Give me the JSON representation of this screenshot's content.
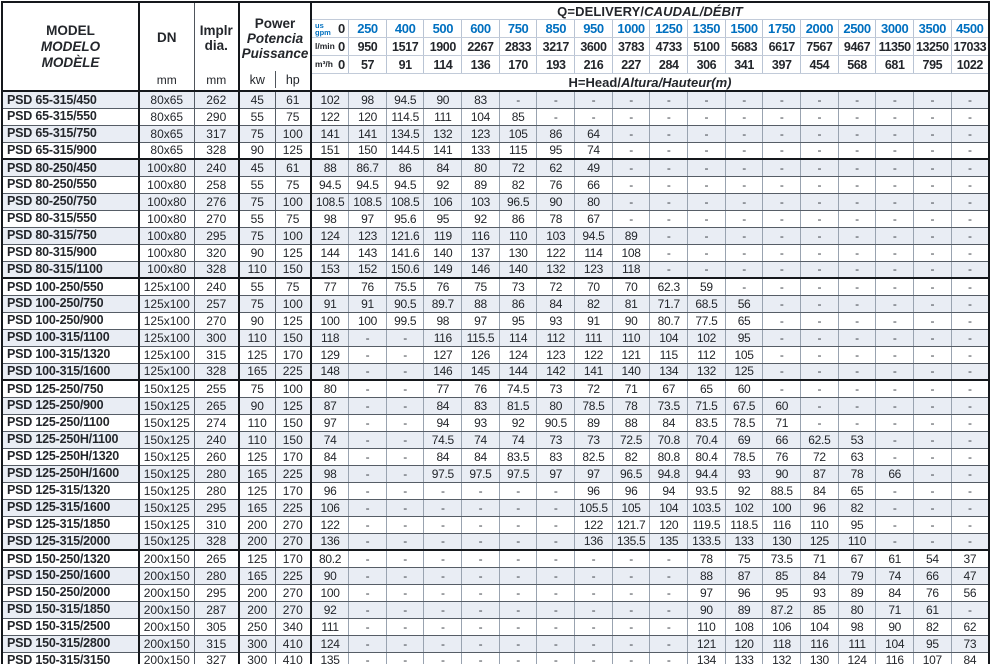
{
  "header": {
    "model_l1": "MODEL",
    "model_l2": "MODELO",
    "model_l3": "MODÈLE",
    "dn": "DN",
    "dn_unit": "mm",
    "implr_l1": "Implr",
    "implr_l2": "dia.",
    "implr_unit": "mm",
    "power_l1": "Power",
    "power_l2": "Potencia",
    "power_l3": "Puissance",
    "kw": "kw",
    "hp": "hp",
    "q_title_plain": "Q=DELIVERY/",
    "q_title_italic": "CAUDAL/DÉBIT",
    "h_title_plain": "H=Head/",
    "h_title_italic": "Altura/Hauteur",
    "h_title_unit": "(m)",
    "gpm_label_1": "us",
    "gpm_label_2": "gpm",
    "lmin_label": "l/min",
    "m3h_label": "m³/h",
    "gpm_zero": "0",
    "lmin_zero": "0",
    "m3h_zero": "0",
    "gpm": [
      "250",
      "400",
      "500",
      "600",
      "750",
      "850",
      "950",
      "1000",
      "1250",
      "1350",
      "1500",
      "1750",
      "2000",
      "2500",
      "3000",
      "3500",
      "4500"
    ],
    "lmin": [
      "950",
      "1517",
      "1900",
      "2267",
      "2833",
      "3217",
      "3600",
      "3783",
      "4733",
      "5100",
      "5683",
      "6617",
      "7567",
      "9467",
      "11350",
      "13250",
      "17033"
    ],
    "m3h": [
      "57",
      "91",
      "114",
      "136",
      "170",
      "193",
      "216",
      "227",
      "284",
      "306",
      "341",
      "397",
      "454",
      "568",
      "681",
      "795",
      "1022"
    ]
  },
  "colors": {
    "accent_blue": "#0070c0",
    "row_stripe": "#e9edf4",
    "border_dark": "#15181c"
  },
  "rows": [
    {
      "model": "PSD 65-315/450",
      "dn": "80x65",
      "dia": "262",
      "kw": "45",
      "hp": "61",
      "h": [
        "102",
        "98",
        "94.5",
        "90",
        "83",
        "-",
        "-",
        "-",
        "-",
        "-",
        "-",
        "-",
        "-",
        "-",
        "-",
        "-",
        "-",
        "-"
      ]
    },
    {
      "model": "PSD 65-315/550",
      "dn": "80x65",
      "dia": "290",
      "kw": "55",
      "hp": "75",
      "h": [
        "122",
        "120",
        "114.5",
        "111",
        "104",
        "85",
        "-",
        "-",
        "-",
        "-",
        "-",
        "-",
        "-",
        "-",
        "-",
        "-",
        "-",
        "-"
      ]
    },
    {
      "model": "PSD 65-315/750",
      "dn": "80x65",
      "dia": "317",
      "kw": "75",
      "hp": "100",
      "h": [
        "141",
        "141",
        "134.5",
        "132",
        "123",
        "105",
        "86",
        "64",
        "-",
        "-",
        "-",
        "-",
        "-",
        "-",
        "-",
        "-",
        "-",
        "-"
      ]
    },
    {
      "model": "PSD 65-315/900",
      "dn": "80x65",
      "dia": "328",
      "kw": "90",
      "hp": "125",
      "h": [
        "151",
        "150",
        "144.5",
        "141",
        "133",
        "115",
        "95",
        "74",
        "-",
        "-",
        "-",
        "-",
        "-",
        "-",
        "-",
        "-",
        "-",
        "-"
      ],
      "group_end": true
    },
    {
      "model": "PSD 80-250/450",
      "dn": "100x80",
      "dia": "240",
      "kw": "45",
      "hp": "61",
      "h": [
        "88",
        "86.7",
        "86",
        "84",
        "80",
        "72",
        "62",
        "49",
        "-",
        "-",
        "-",
        "-",
        "-",
        "-",
        "-",
        "-",
        "-",
        "-"
      ]
    },
    {
      "model": "PSD 80-250/550",
      "dn": "100x80",
      "dia": "258",
      "kw": "55",
      "hp": "75",
      "h": [
        "94.5",
        "94.5",
        "94.5",
        "92",
        "89",
        "82",
        "76",
        "66",
        "-",
        "-",
        "-",
        "-",
        "-",
        "-",
        "-",
        "-",
        "-",
        "-"
      ]
    },
    {
      "model": "PSD 80-250/750",
      "dn": "100x80",
      "dia": "276",
      "kw": "75",
      "hp": "100",
      "h": [
        "108.5",
        "108.5",
        "108.5",
        "106",
        "103",
        "96.5",
        "90",
        "80",
        "-",
        "-",
        "-",
        "-",
        "-",
        "-",
        "-",
        "-",
        "-",
        "-"
      ]
    },
    {
      "model": "PSD 80-315/550",
      "dn": "100x80",
      "dia": "270",
      "kw": "55",
      "hp": "75",
      "h": [
        "98",
        "97",
        "95.6",
        "95",
        "92",
        "86",
        "78",
        "67",
        "-",
        "-",
        "-",
        "-",
        "-",
        "-",
        "-",
        "-",
        "-",
        "-"
      ]
    },
    {
      "model": "PSD 80-315/750",
      "dn": "100x80",
      "dia": "295",
      "kw": "75",
      "hp": "100",
      "h": [
        "124",
        "123",
        "121.6",
        "119",
        "116",
        "110",
        "103",
        "94.5",
        "89",
        "-",
        "-",
        "-",
        "-",
        "-",
        "-",
        "-",
        "-",
        "-"
      ]
    },
    {
      "model": "PSD 80-315/900",
      "dn": "100x80",
      "dia": "320",
      "kw": "90",
      "hp": "125",
      "h": [
        "144",
        "143",
        "141.6",
        "140",
        "137",
        "130",
        "122",
        "114",
        "108",
        "-",
        "-",
        "-",
        "-",
        "-",
        "-",
        "-",
        "-",
        "-"
      ]
    },
    {
      "model": "PSD 80-315/1100",
      "dn": "100x80",
      "dia": "328",
      "kw": "110",
      "hp": "150",
      "h": [
        "153",
        "152",
        "150.6",
        "149",
        "146",
        "140",
        "132",
        "123",
        "118",
        "-",
        "-",
        "-",
        "-",
        "-",
        "-",
        "-",
        "-",
        "-"
      ],
      "group_end": true
    },
    {
      "model": "PSD 100-250/550",
      "dn": "125x100",
      "dia": "240",
      "kw": "55",
      "hp": "75",
      "h": [
        "77",
        "76",
        "75.5",
        "76",
        "75",
        "73",
        "72",
        "70",
        "70",
        "62.3",
        "59",
        "-",
        "-",
        "-",
        "-",
        "-",
        "-",
        "-"
      ]
    },
    {
      "model": "PSD 100-250/750",
      "dn": "125x100",
      "dia": "257",
      "kw": "75",
      "hp": "100",
      "h": [
        "91",
        "91",
        "90.5",
        "89.7",
        "88",
        "86",
        "84",
        "82",
        "81",
        "71.7",
        "68.5",
        "56",
        "-",
        "-",
        "-",
        "-",
        "-",
        "-"
      ]
    },
    {
      "model": "PSD 100-250/900",
      "dn": "125x100",
      "dia": "270",
      "kw": "90",
      "hp": "125",
      "h": [
        "100",
        "100",
        "99.5",
        "98",
        "97",
        "95",
        "93",
        "91",
        "90",
        "80.7",
        "77.5",
        "65",
        "-",
        "-",
        "-",
        "-",
        "-",
        "-"
      ]
    },
    {
      "model": "PSD 100-315/1100",
      "dn": "125x100",
      "dia": "300",
      "kw": "110",
      "hp": "150",
      "h": [
        "118",
        "-",
        "-",
        "116",
        "115.5",
        "114",
        "112",
        "111",
        "110",
        "104",
        "102",
        "95",
        "-",
        "-",
        "-",
        "-",
        "-",
        "-"
      ]
    },
    {
      "model": "PSD 100-315/1320",
      "dn": "125x100",
      "dia": "315",
      "kw": "125",
      "hp": "170",
      "h": [
        "129",
        "-",
        "-",
        "127",
        "126",
        "124",
        "123",
        "122",
        "121",
        "115",
        "112",
        "105",
        "-",
        "-",
        "-",
        "-",
        "-",
        "-"
      ]
    },
    {
      "model": "PSD 100-315/1600",
      "dn": "125x100",
      "dia": "328",
      "kw": "165",
      "hp": "225",
      "h": [
        "148",
        "-",
        "-",
        "146",
        "145",
        "144",
        "142",
        "141",
        "140",
        "134",
        "132",
        "125",
        "-",
        "-",
        "-",
        "-",
        "-",
        "-"
      ],
      "group_end": true
    },
    {
      "model": "PSD 125-250/750",
      "dn": "150x125",
      "dia": "255",
      "kw": "75",
      "hp": "100",
      "h": [
        "80",
        "-",
        "-",
        "77",
        "76",
        "74.5",
        "73",
        "72",
        "71",
        "67",
        "65",
        "60",
        "-",
        "-",
        "-",
        "-",
        "-",
        "-"
      ]
    },
    {
      "model": "PSD 125-250/900",
      "dn": "150x125",
      "dia": "265",
      "kw": "90",
      "hp": "125",
      "h": [
        "87",
        "-",
        "-",
        "84",
        "83",
        "81.5",
        "80",
        "78.5",
        "78",
        "73.5",
        "71.5",
        "67.5",
        "60",
        "-",
        "-",
        "-",
        "-",
        "-"
      ]
    },
    {
      "model": "PSD 125-250/1100",
      "dn": "150x125",
      "dia": "274",
      "kw": "110",
      "hp": "150",
      "h": [
        "97",
        "-",
        "-",
        "94",
        "93",
        "92",
        "90.5",
        "89",
        "88",
        "84",
        "83.5",
        "78.5",
        "71",
        "-",
        "-",
        "-",
        "-",
        "-"
      ]
    },
    {
      "model": "PSD 125-250H/1100",
      "dn": "150x125",
      "dia": "240",
      "kw": "110",
      "hp": "150",
      "h": [
        "74",
        "-",
        "-",
        "74.5",
        "74",
        "74",
        "73",
        "73",
        "72.5",
        "70.8",
        "70.4",
        "69",
        "66",
        "62.5",
        "53",
        "-",
        "-",
        "-"
      ]
    },
    {
      "model": "PSD 125-250H/1320",
      "dn": "150x125",
      "dia": "260",
      "kw": "125",
      "hp": "170",
      "h": [
        "84",
        "-",
        "-",
        "84",
        "84",
        "83.5",
        "83",
        "82.5",
        "82",
        "80.8",
        "80.4",
        "78.5",
        "76",
        "72",
        "63",
        "-",
        "-",
        "-"
      ]
    },
    {
      "model": "PSD 125-250H/1600",
      "dn": "150x125",
      "dia": "280",
      "kw": "165",
      "hp": "225",
      "h": [
        "98",
        "-",
        "-",
        "97.5",
        "97.5",
        "97.5",
        "97",
        "97",
        "96.5",
        "94.8",
        "94.4",
        "93",
        "90",
        "87",
        "78",
        "66",
        "-",
        "-"
      ]
    },
    {
      "model": "PSD 125-315/1320",
      "dn": "150x125",
      "dia": "280",
      "kw": "125",
      "hp": "170",
      "h": [
        "96",
        "-",
        "-",
        "-",
        "-",
        "-",
        "-",
        "96",
        "96",
        "94",
        "93.5",
        "92",
        "88.5",
        "84",
        "65",
        "-",
        "-",
        "-"
      ]
    },
    {
      "model": "PSD 125-315/1600",
      "dn": "150x125",
      "dia": "295",
      "kw": "165",
      "hp": "225",
      "h": [
        "106",
        "-",
        "-",
        "-",
        "-",
        "-",
        "-",
        "105.5",
        "105",
        "104",
        "103.5",
        "102",
        "100",
        "96",
        "82",
        "-",
        "-",
        "-"
      ]
    },
    {
      "model": "PSD 125-315/1850",
      "dn": "150x125",
      "dia": "310",
      "kw": "200",
      "hp": "270",
      "h": [
        "122",
        "-",
        "-",
        "-",
        "-",
        "-",
        "-",
        "122",
        "121.7",
        "120",
        "119.5",
        "118.5",
        "116",
        "110",
        "95",
        "-",
        "-",
        "-"
      ]
    },
    {
      "model": "PSD 125-315/2000",
      "dn": "150x125",
      "dia": "328",
      "kw": "200",
      "hp": "270",
      "h": [
        "136",
        "-",
        "-",
        "-",
        "-",
        "-",
        "-",
        "136",
        "135.5",
        "135",
        "133.5",
        "133",
        "130",
        "125",
        "110",
        "-",
        "-",
        "-"
      ],
      "group_end": true
    },
    {
      "model": "PSD 150-250/1320",
      "dn": "200x150",
      "dia": "265",
      "kw": "125",
      "hp": "170",
      "h": [
        "80.2",
        "-",
        "-",
        "-",
        "-",
        "-",
        "-",
        "-",
        "-",
        "-",
        "78",
        "75",
        "73.5",
        "71",
        "67",
        "61",
        "54",
        "37"
      ]
    },
    {
      "model": "PSD 150-250/1600",
      "dn": "200x150",
      "dia": "280",
      "kw": "165",
      "hp": "225",
      "h": [
        "90",
        "-",
        "-",
        "-",
        "-",
        "-",
        "-",
        "-",
        "-",
        "-",
        "88",
        "87",
        "85",
        "84",
        "79",
        "74",
        "66",
        "47"
      ]
    },
    {
      "model": "PSD 150-250/2000",
      "dn": "200x150",
      "dia": "295",
      "kw": "200",
      "hp": "270",
      "h": [
        "100",
        "-",
        "-",
        "-",
        "-",
        "-",
        "-",
        "-",
        "-",
        "-",
        "97",
        "96",
        "95",
        "93",
        "89",
        "84",
        "76",
        "56"
      ]
    },
    {
      "model": "PSD 150-315/1850",
      "dn": "200x150",
      "dia": "287",
      "kw": "200",
      "hp": "270",
      "h": [
        "92",
        "-",
        "-",
        "-",
        "-",
        "-",
        "-",
        "-",
        "-",
        "-",
        "90",
        "89",
        "87.2",
        "85",
        "80",
        "71",
        "61",
        "-"
      ]
    },
    {
      "model": "PSD 150-315/2500",
      "dn": "200x150",
      "dia": "305",
      "kw": "250",
      "hp": "340",
      "h": [
        "111",
        "-",
        "-",
        "-",
        "-",
        "-",
        "-",
        "-",
        "-",
        "-",
        "110",
        "108",
        "106",
        "104",
        "98",
        "90",
        "82",
        "62"
      ]
    },
    {
      "model": "PSD 150-315/2800",
      "dn": "200x150",
      "dia": "315",
      "kw": "300",
      "hp": "410",
      "h": [
        "124",
        "-",
        "-",
        "-",
        "-",
        "-",
        "-",
        "-",
        "-",
        "-",
        "121",
        "120",
        "118",
        "116",
        "111",
        "104",
        "95",
        "73"
      ]
    },
    {
      "model": "PSD 150-315/3150",
      "dn": "200x150",
      "dia": "327",
      "kw": "300",
      "hp": "410",
      "h": [
        "135",
        "-",
        "-",
        "-",
        "-",
        "-",
        "-",
        "-",
        "-",
        "-",
        "134",
        "133",
        "132",
        "130",
        "124",
        "116",
        "107",
        "84"
      ]
    }
  ]
}
